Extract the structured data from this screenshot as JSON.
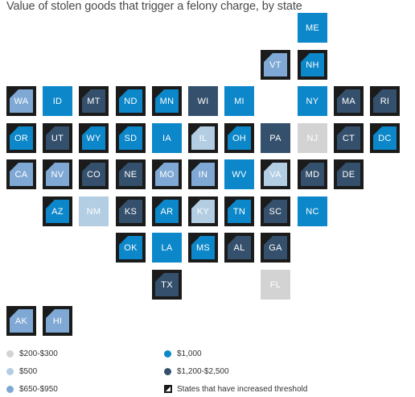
{
  "title": "Value of stolen goods that trigger a felony charge, by state",
  "categories": {
    "c1": {
      "label": "$200-$300",
      "color": "#d3d3d3"
    },
    "c2": {
      "label": "$500",
      "color": "#b3cde3"
    },
    "c3": {
      "label": "$650-$950",
      "color": "#7fa9d4"
    },
    "c4": {
      "label": "$1,000",
      "color": "#0c87c9"
    },
    "c5": {
      "label": "$1,200-$2,500",
      "color": "#35506c"
    }
  },
  "increased_label": "States that have increased threshold",
  "states": [
    {
      "abbr": "ME",
      "cat": "c4",
      "inc": false,
      "row": 0,
      "col": 8
    },
    {
      "abbr": "VT",
      "cat": "c3",
      "inc": true,
      "row": 1,
      "col": 7
    },
    {
      "abbr": "NH",
      "cat": "c4",
      "inc": true,
      "row": 1,
      "col": 8
    },
    {
      "abbr": "WA",
      "cat": "c3",
      "inc": true,
      "row": 2,
      "col": 0
    },
    {
      "abbr": "ID",
      "cat": "c4",
      "inc": false,
      "row": 2,
      "col": 1
    },
    {
      "abbr": "MT",
      "cat": "c5",
      "inc": true,
      "row": 2,
      "col": 2
    },
    {
      "abbr": "ND",
      "cat": "c4",
      "inc": true,
      "row": 2,
      "col": 3
    },
    {
      "abbr": "MN",
      "cat": "c4",
      "inc": true,
      "row": 2,
      "col": 4
    },
    {
      "abbr": "WI",
      "cat": "c5",
      "inc": false,
      "row": 2,
      "col": 5
    },
    {
      "abbr": "MI",
      "cat": "c4",
      "inc": false,
      "row": 2,
      "col": 6
    },
    {
      "abbr": "NY",
      "cat": "c4",
      "inc": false,
      "row": 2,
      "col": 8
    },
    {
      "abbr": "MA",
      "cat": "c5",
      "inc": true,
      "row": 2,
      "col": 9
    },
    {
      "abbr": "RI",
      "cat": "c5",
      "inc": true,
      "row": 2,
      "col": 10
    },
    {
      "abbr": "OR",
      "cat": "c4",
      "inc": true,
      "row": 3,
      "col": 0
    },
    {
      "abbr": "UT",
      "cat": "c5",
      "inc": true,
      "row": 3,
      "col": 1
    },
    {
      "abbr": "WY",
      "cat": "c4",
      "inc": true,
      "row": 3,
      "col": 2
    },
    {
      "abbr": "SD",
      "cat": "c4",
      "inc": true,
      "row": 3,
      "col": 3
    },
    {
      "abbr": "IA",
      "cat": "c4",
      "inc": false,
      "row": 3,
      "col": 4
    },
    {
      "abbr": "IL",
      "cat": "c2",
      "inc": true,
      "row": 3,
      "col": 5
    },
    {
      "abbr": "OH",
      "cat": "c4",
      "inc": true,
      "row": 3,
      "col": 6
    },
    {
      "abbr": "PA",
      "cat": "c5",
      "inc": false,
      "row": 3,
      "col": 7
    },
    {
      "abbr": "NJ",
      "cat": "c1",
      "inc": false,
      "row": 3,
      "col": 8
    },
    {
      "abbr": "CT",
      "cat": "c5",
      "inc": true,
      "row": 3,
      "col": 9
    },
    {
      "abbr": "DC",
      "cat": "c4",
      "inc": true,
      "row": 3,
      "col": 10
    },
    {
      "abbr": "CA",
      "cat": "c3",
      "inc": true,
      "row": 4,
      "col": 0
    },
    {
      "abbr": "NV",
      "cat": "c3",
      "inc": true,
      "row": 4,
      "col": 1
    },
    {
      "abbr": "CO",
      "cat": "c5",
      "inc": true,
      "row": 4,
      "col": 2
    },
    {
      "abbr": "NE",
      "cat": "c5",
      "inc": true,
      "row": 4,
      "col": 3
    },
    {
      "abbr": "MO",
      "cat": "c3",
      "inc": true,
      "row": 4,
      "col": 4
    },
    {
      "abbr": "IN",
      "cat": "c3",
      "inc": true,
      "row": 4,
      "col": 5
    },
    {
      "abbr": "WV",
      "cat": "c4",
      "inc": false,
      "row": 4,
      "col": 6
    },
    {
      "abbr": "VA",
      "cat": "c2",
      "inc": true,
      "row": 4,
      "col": 7
    },
    {
      "abbr": "MD",
      "cat": "c5",
      "inc": true,
      "row": 4,
      "col": 8
    },
    {
      "abbr": "DE",
      "cat": "c5",
      "inc": true,
      "row": 4,
      "col": 9
    },
    {
      "abbr": "AZ",
      "cat": "c4",
      "inc": true,
      "row": 5,
      "col": 1
    },
    {
      "abbr": "NM",
      "cat": "c2",
      "inc": false,
      "row": 5,
      "col": 2
    },
    {
      "abbr": "KS",
      "cat": "c5",
      "inc": true,
      "row": 5,
      "col": 3
    },
    {
      "abbr": "AR",
      "cat": "c4",
      "inc": true,
      "row": 5,
      "col": 4
    },
    {
      "abbr": "KY",
      "cat": "c2",
      "inc": true,
      "row": 5,
      "col": 5
    },
    {
      "abbr": "TN",
      "cat": "c4",
      "inc": true,
      "row": 5,
      "col": 6
    },
    {
      "abbr": "SC",
      "cat": "c5",
      "inc": true,
      "row": 5,
      "col": 7
    },
    {
      "abbr": "NC",
      "cat": "c4",
      "inc": false,
      "row": 5,
      "col": 8
    },
    {
      "abbr": "OK",
      "cat": "c4",
      "inc": true,
      "row": 6,
      "col": 3
    },
    {
      "abbr": "LA",
      "cat": "c4",
      "inc": false,
      "row": 6,
      "col": 4
    },
    {
      "abbr": "MS",
      "cat": "c4",
      "inc": true,
      "row": 6,
      "col": 5
    },
    {
      "abbr": "AL",
      "cat": "c5",
      "inc": true,
      "row": 6,
      "col": 6
    },
    {
      "abbr": "GA",
      "cat": "c5",
      "inc": true,
      "row": 6,
      "col": 7
    },
    {
      "abbr": "TX",
      "cat": "c5",
      "inc": true,
      "row": 7,
      "col": 4
    },
    {
      "abbr": "FL",
      "cat": "c1",
      "inc": false,
      "row": 7,
      "col": 7
    },
    {
      "abbr": "AK",
      "cat": "c3",
      "inc": true,
      "row": 8,
      "col": 0
    },
    {
      "abbr": "HI",
      "cat": "c3",
      "inc": true,
      "row": 8,
      "col": 1
    }
  ]
}
